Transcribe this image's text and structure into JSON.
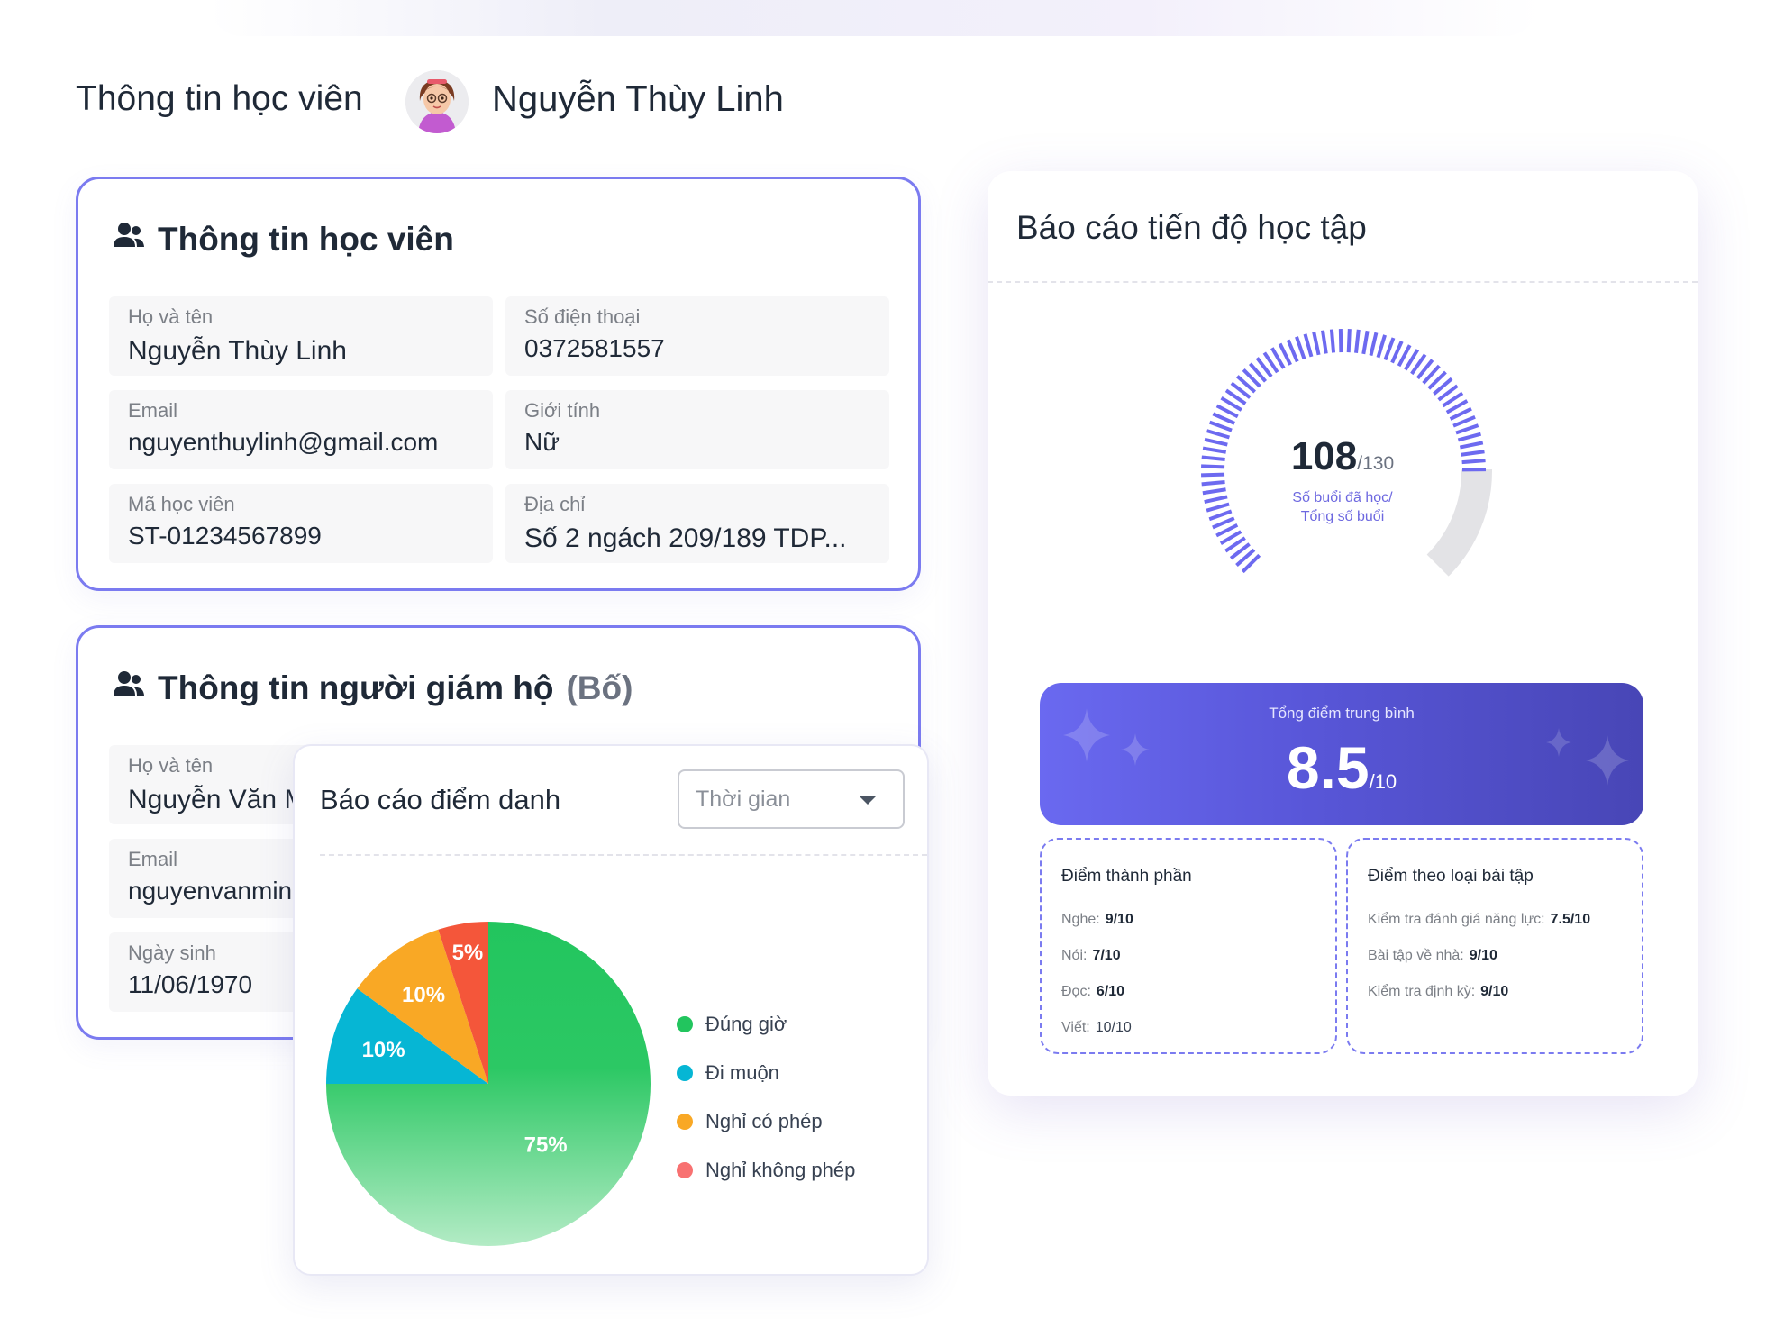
{
  "header": {
    "page_title": "Thông tin học viên",
    "student_name": "Nguyễn Thùy Linh"
  },
  "student_card": {
    "title": "Thông tin học viên",
    "fields": [
      {
        "label": "Họ và tên",
        "value": "Nguyễn Thùy Linh"
      },
      {
        "label": "Số điện thoại",
        "value": "0372581557"
      },
      {
        "label": "Email",
        "value": "nguyenthuylinh@gmail.com"
      },
      {
        "label": "Giới tính",
        "value": "Nữ"
      },
      {
        "label": "Mã học viên",
        "value": "ST-01234567899"
      },
      {
        "label": "Địa chỉ",
        "value": "Số 2 ngách 209/189 TDP..."
      }
    ]
  },
  "guardian_card": {
    "title": "Thông tin người giám hộ",
    "relation": "(Bố)",
    "fields": [
      {
        "label": "Họ và tên",
        "value": "Nguyễn Văn Minh"
      },
      {
        "label": "Email",
        "value": "nguyenvanminh"
      },
      {
        "label": "Ngày sinh",
        "value": "11/06/1970"
      }
    ]
  },
  "attendance": {
    "title": "Báo cáo điểm danh",
    "time_select": "Thời gian",
    "chart_data": {
      "type": "pie",
      "categories": [
        "Đúng giờ",
        "Đi muộn",
        "Nghỉ có phép",
        "Nghỉ không phép"
      ],
      "values": [
        75,
        10,
        10,
        5
      ],
      "labels": [
        "75%",
        "10%",
        "10%",
        "5%"
      ],
      "colors": [
        "#22c55e",
        "#06b6d4",
        "#f9a825",
        "#f4563a"
      ],
      "legend_position": "right"
    },
    "legend": [
      "Đúng giờ",
      "Đi muộn",
      "Nghỉ có phép",
      "Nghỉ không phép"
    ],
    "legend_colors": [
      "#22c55e",
      "#06b6d4",
      "#f9a825",
      "#f87171"
    ]
  },
  "progress": {
    "title": "Báo cáo tiến độ học tập",
    "sessions_done": "108",
    "sessions_total": "/130",
    "done_value": 108,
    "total_value": 130,
    "caption_line1": "Số buổi đã học/",
    "caption_line2": "Tổng số buổi",
    "avg_label": "Tổng điểm trung bình",
    "avg_value": "8.5",
    "avg_max": "/10",
    "component_title": "Điểm thành phần",
    "components": [
      {
        "label": "Nghe:",
        "value": "9/10"
      },
      {
        "label": "Nói:",
        "value": "7/10"
      },
      {
        "label": "Đọc:",
        "value": "6/10"
      },
      {
        "label": "Viết:",
        "value": "10/10"
      }
    ],
    "type_title": "Điểm theo loại bài tập",
    "types": [
      {
        "label": "Kiểm tra đánh giá năng lực:",
        "value": "7.5/10"
      },
      {
        "label": "Bài tập về nhà:",
        "value": "9/10"
      },
      {
        "label": "Kiểm tra định kỳ:",
        "value": "9/10"
      }
    ],
    "accent_color": "#6d68e0"
  }
}
